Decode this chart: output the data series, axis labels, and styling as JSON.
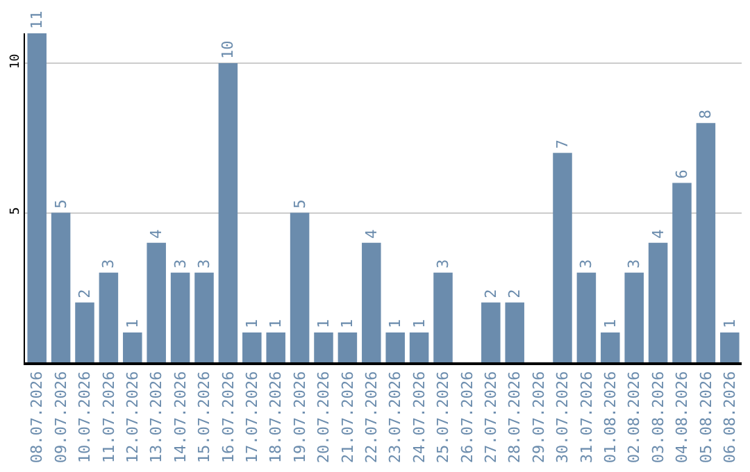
{
  "chart_data": {
    "type": "bar",
    "categories": [
      "08.07.2026",
      "09.07.2026",
      "10.07.2026",
      "11.07.2026",
      "12.07.2026",
      "13.07.2026",
      "14.07.2026",
      "15.07.2026",
      "16.07.2026",
      "17.07.2026",
      "18.07.2026",
      "19.07.2026",
      "20.07.2026",
      "21.07.2026",
      "22.07.2026",
      "23.07.2026",
      "24.07.2026",
      "25.07.2026",
      "26.07.2026",
      "27.07.2026",
      "28.07.2026",
      "29.07.2026",
      "30.07.2026",
      "31.07.2026",
      "01.08.2026",
      "02.08.2026",
      "03.08.2026",
      "04.08.2026",
      "05.08.2026",
      "06.08.2026"
    ],
    "values": [
      11,
      5,
      2,
      3,
      1,
      4,
      3,
      3,
      10,
      1,
      1,
      5,
      1,
      1,
      4,
      1,
      1,
      3,
      0,
      2,
      2,
      0,
      7,
      3,
      1,
      3,
      4,
      6,
      8,
      1
    ],
    "value_labels": [
      "11",
      "5",
      "2",
      "3",
      "1",
      "4",
      "3",
      "3",
      "10",
      "1",
      "1",
      "5",
      "1",
      "1",
      "4",
      "1",
      "1",
      "3",
      null,
      "2",
      "2",
      null,
      "7",
      "3",
      "1",
      "3",
      "4",
      "6",
      "8",
      "1"
    ],
    "color": "#6b8cad",
    "ylim": [
      0,
      11
    ],
    "yticks": [
      5,
      10
    ],
    "grid": "y",
    "legend": false
  }
}
